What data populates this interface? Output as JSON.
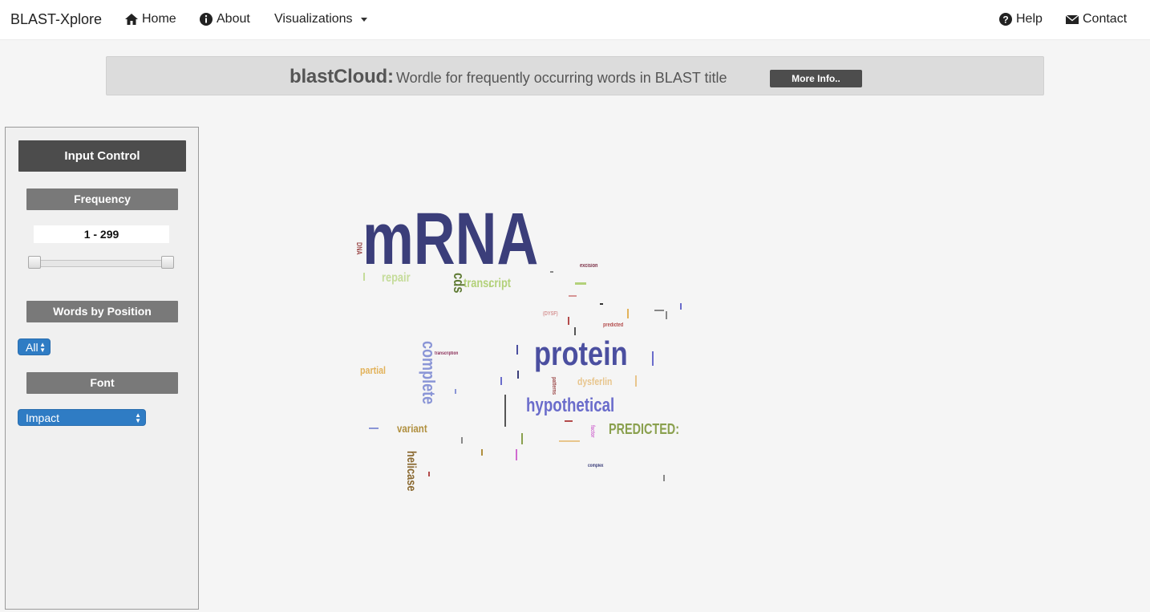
{
  "navbar": {
    "brand": "BLAST-Xplore",
    "home": "Home",
    "about": "About",
    "visualizations": "Visualizations",
    "help": "Help",
    "contact": "Contact"
  },
  "banner": {
    "title": "blastCloud:",
    "subtitle": "Wordle for frequently occurring words in BLAST title",
    "more_button": "More Info.."
  },
  "sidebar": {
    "input_control": "Input Control",
    "frequency_label": "Frequency",
    "frequency_range": "1 - 299",
    "frequency_slider": {
      "min": 1,
      "max": 299,
      "low": 1,
      "high": 299
    },
    "words_by_position_label": "Words by Position",
    "position_select": "All",
    "font_label": "Font",
    "font_select": "Impact"
  },
  "wordcloud": {
    "words": [
      {
        "text": "mRNA",
        "color": "#3b3e7a"
      },
      {
        "text": "protein",
        "color": "#4b4fa0"
      },
      {
        "text": "hypothetical",
        "color": "#6a6ccb"
      },
      {
        "text": "complete",
        "color": "#8a95d6"
      },
      {
        "text": "PREDICTED:",
        "color": "#8aa04e"
      },
      {
        "text": "transcript",
        "color": "#b3d17a"
      },
      {
        "text": "repair",
        "color": "#c5dc9a"
      },
      {
        "text": "cds",
        "color": "#5f7b34"
      },
      {
        "text": "helicase",
        "color": "#8b6a32"
      },
      {
        "text": "variant",
        "color": "#b08f3e"
      },
      {
        "text": "partial",
        "color": "#e2b25a"
      },
      {
        "text": "dysferlin",
        "color": "#e8c58c"
      },
      {
        "text": "DNA",
        "color": "#9c4a4a"
      },
      {
        "text": "excision",
        "color": "#7a2e45"
      },
      {
        "text": "predicted",
        "color": "#b34b4b"
      },
      {
        "text": "transcription",
        "color": "#8a2e58"
      },
      {
        "text": "complex",
        "color": "#3b3e7a"
      },
      {
        "text": "(DYSF)",
        "color": "#d69595"
      },
      {
        "text": "patterns",
        "color": "#9c4a4a"
      },
      {
        "text": "factor",
        "color": "#d06ad0"
      }
    ]
  }
}
